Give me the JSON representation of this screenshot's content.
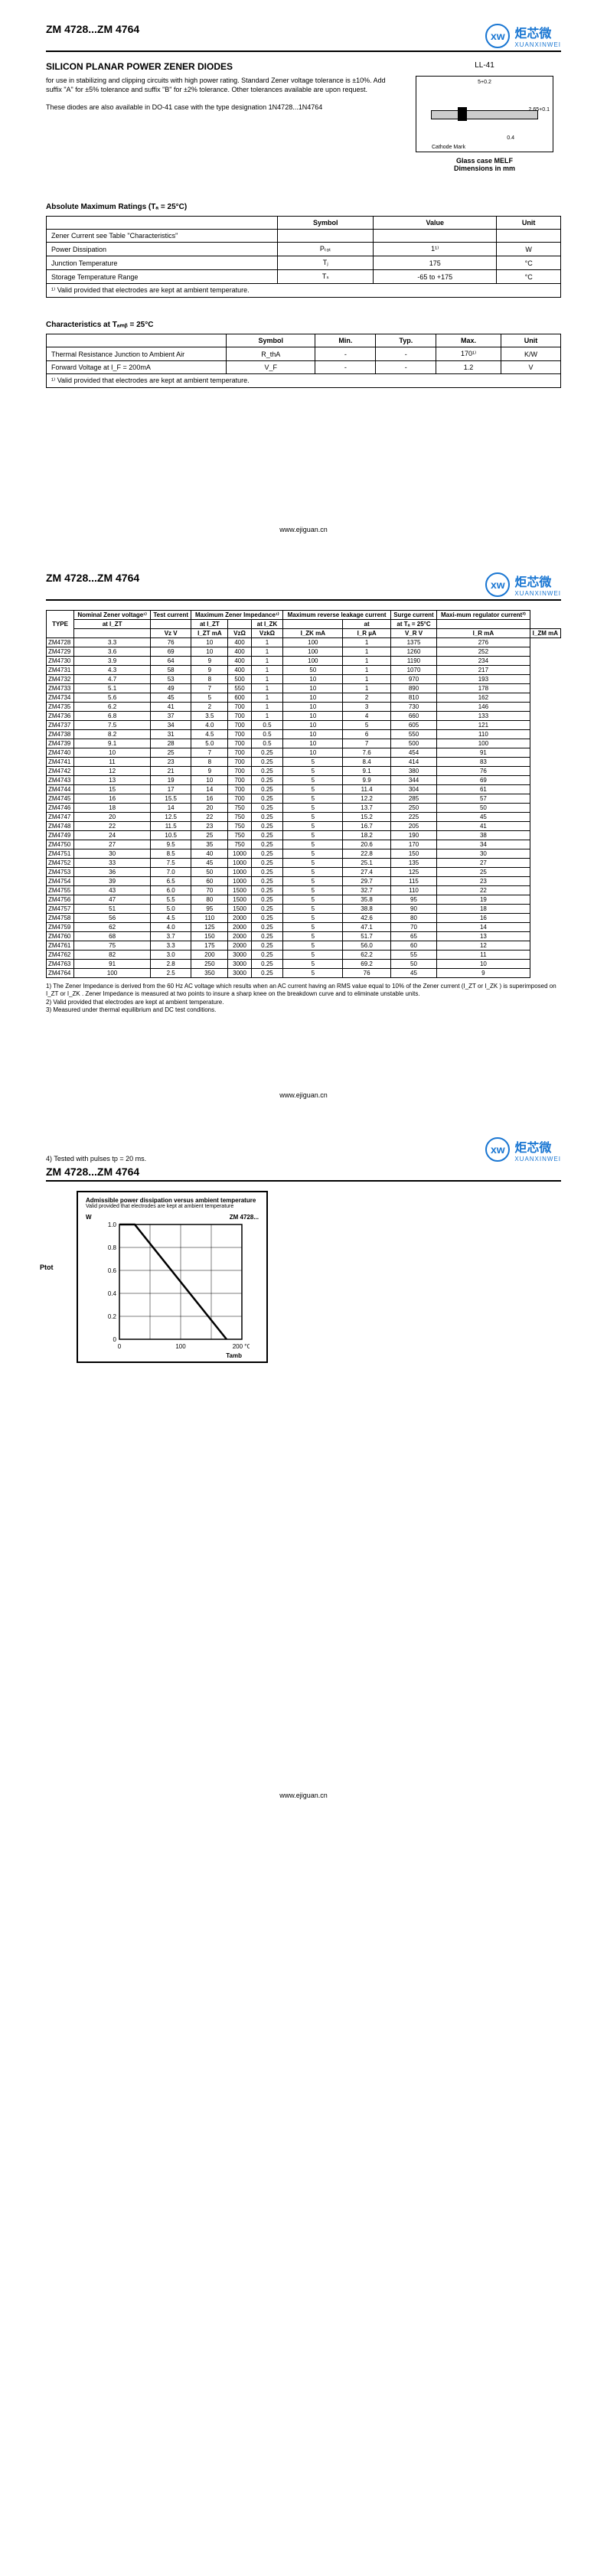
{
  "partNumber": "ZM 4728...ZM 4764",
  "logo": {
    "circle": "xw",
    "cn": "炬芯微",
    "en": "XUANXINWEI"
  },
  "title": "SILICON PLANAR POWER ZENER DIODES",
  "desc1": "for use in stabilizing and clipping circuits with high power rating. Standard Zener voltage tolerance is ±10%. Add suffix \"A\" for ±5% tolerance and suffix \"B\" for ±2% tolerance. Other tolerances available are upon request.",
  "desc2": "These diodes are also available in DO-41 case with the type designation 1N4728...1N4764",
  "pkgLabel": "LL-41",
  "pkgCaption1": "Glass case MELF",
  "pkgCaption2": "Dimensions in mm",
  "pkgDim1": "5+0.2",
  "pkgDim2": "2.65+0.1",
  "pkgDim3": "0.4",
  "pkgCathode": "Cathode Mark",
  "absMax": {
    "title": "Absolute Maximum Ratings (Tₐ = 25°C)",
    "headers": [
      "",
      "Symbol",
      "Value",
      "Unit"
    ],
    "rows": [
      [
        "Zener Current see Table \"Characteristics\"",
        "",
        "",
        ""
      ],
      [
        "Power Dissipation",
        "Pₜₒₜ",
        "1¹⁾",
        "W"
      ],
      [
        "Junction Temperature",
        "Tⱼ",
        "175",
        "°C"
      ],
      [
        "Storage Temperature Range",
        "Tₛ",
        "-65 to +175",
        "°C"
      ]
    ],
    "note": "¹⁾ Valid provided that electrodes are kept at ambient temperature."
  },
  "chars": {
    "title": "Characteristics at Tₐₘᵦ = 25°C",
    "headers": [
      "",
      "Symbol",
      "Min.",
      "Typ.",
      "Max.",
      "Unit"
    ],
    "rows": [
      [
        "Thermal Resistance Junction to Ambient Air",
        "R_thA",
        "-",
        "-",
        "170¹⁾",
        "K/W"
      ],
      [
        "Forward Voltage at I_F = 200mA",
        "V_F",
        "-",
        "-",
        "1.2",
        "V"
      ]
    ],
    "note": "¹⁾ Valid provided that electrodes are kept at ambient temperature."
  },
  "footer": "www.ejiguan.cn",
  "mainTable": {
    "headers1": [
      "TYPE",
      "Nominal Zener voltage¹⁾",
      "Test current",
      "Maximum Zener Impedance¹⁾",
      "",
      "",
      "Maximum reverse leakage current",
      "",
      "Surge current",
      "Maxi-mum regulator current²⁾"
    ],
    "headers2": [
      "",
      "at I_ZT",
      "",
      "at I_ZT",
      "",
      "at I_ZK",
      "",
      "at",
      "at Tₐ = 25°C",
      ""
    ],
    "headers3": [
      "",
      "Vz V",
      "I_ZT mA",
      "VzΩ",
      "VzkΩ",
      "I_ZK mA",
      "I_R µA",
      "V_R V",
      "I_R mA",
      "I_ZM mA"
    ],
    "rows": [
      [
        "ZM4728",
        "3.3",
        "76",
        "10",
        "400",
        "1",
        "100",
        "1",
        "1375",
        "276"
      ],
      [
        "ZM4729",
        "3.6",
        "69",
        "10",
        "400",
        "1",
        "100",
        "1",
        "1260",
        "252"
      ],
      [
        "ZM4730",
        "3.9",
        "64",
        "9",
        "400",
        "1",
        "100",
        "1",
        "1190",
        "234"
      ],
      [
        "ZM4731",
        "4.3",
        "58",
        "9",
        "400",
        "1",
        "50",
        "1",
        "1070",
        "217"
      ],
      [
        "ZM4732",
        "4.7",
        "53",
        "8",
        "500",
        "1",
        "10",
        "1",
        "970",
        "193"
      ],
      [
        "ZM4733",
        "5.1",
        "49",
        "7",
        "550",
        "1",
        "10",
        "1",
        "890",
        "178"
      ],
      [
        "ZM4734",
        "5.6",
        "45",
        "5",
        "600",
        "1",
        "10",
        "2",
        "810",
        "162"
      ],
      [
        "ZM4735",
        "6.2",
        "41",
        "2",
        "700",
        "1",
        "10",
        "3",
        "730",
        "146"
      ],
      [
        "ZM4736",
        "6.8",
        "37",
        "3.5",
        "700",
        "1",
        "10",
        "4",
        "660",
        "133"
      ],
      [
        "ZM4737",
        "7.5",
        "34",
        "4.0",
        "700",
        "0.5",
        "10",
        "5",
        "605",
        "121"
      ],
      [
        "ZM4738",
        "8.2",
        "31",
        "4.5",
        "700",
        "0.5",
        "10",
        "6",
        "550",
        "110"
      ],
      [
        "ZM4739",
        "9.1",
        "28",
        "5.0",
        "700",
        "0.5",
        "10",
        "7",
        "500",
        "100"
      ],
      [
        "ZM4740",
        "10",
        "25",
        "7",
        "700",
        "0.25",
        "10",
        "7.6",
        "454",
        "91"
      ],
      [
        "ZM4741",
        "11",
        "23",
        "8",
        "700",
        "0.25",
        "5",
        "8.4",
        "414",
        "83"
      ],
      [
        "ZM4742",
        "12",
        "21",
        "9",
        "700",
        "0.25",
        "5",
        "9.1",
        "380",
        "76"
      ],
      [
        "ZM4743",
        "13",
        "19",
        "10",
        "700",
        "0.25",
        "5",
        "9.9",
        "344",
        "69"
      ],
      [
        "ZM4744",
        "15",
        "17",
        "14",
        "700",
        "0.25",
        "5",
        "11.4",
        "304",
        "61"
      ],
      [
        "ZM4745",
        "16",
        "15.5",
        "16",
        "700",
        "0.25",
        "5",
        "12.2",
        "285",
        "57"
      ],
      [
        "ZM4746",
        "18",
        "14",
        "20",
        "750",
        "0.25",
        "5",
        "13.7",
        "250",
        "50"
      ],
      [
        "ZM4747",
        "20",
        "12.5",
        "22",
        "750",
        "0.25",
        "5",
        "15.2",
        "225",
        "45"
      ],
      [
        "ZM4748",
        "22",
        "11.5",
        "23",
        "750",
        "0.25",
        "5",
        "16.7",
        "205",
        "41"
      ],
      [
        "ZM4749",
        "24",
        "10.5",
        "25",
        "750",
        "0.25",
        "5",
        "18.2",
        "190",
        "38"
      ],
      [
        "ZM4750",
        "27",
        "9.5",
        "35",
        "750",
        "0.25",
        "5",
        "20.6",
        "170",
        "34"
      ],
      [
        "ZM4751",
        "30",
        "8.5",
        "40",
        "1000",
        "0.25",
        "5",
        "22.8",
        "150",
        "30"
      ],
      [
        "ZM4752",
        "33",
        "7.5",
        "45",
        "1000",
        "0.25",
        "5",
        "25.1",
        "135",
        "27"
      ],
      [
        "ZM4753",
        "36",
        "7.0",
        "50",
        "1000",
        "0.25",
        "5",
        "27.4",
        "125",
        "25"
      ],
      [
        "ZM4754",
        "39",
        "6.5",
        "60",
        "1000",
        "0.25",
        "5",
        "29.7",
        "115",
        "23"
      ],
      [
        "ZM4755",
        "43",
        "6.0",
        "70",
        "1500",
        "0.25",
        "5",
        "32.7",
        "110",
        "22"
      ],
      [
        "ZM4756",
        "47",
        "5.5",
        "80",
        "1500",
        "0.25",
        "5",
        "35.8",
        "95",
        "19"
      ],
      [
        "ZM4757",
        "51",
        "5.0",
        "95",
        "1500",
        "0.25",
        "5",
        "38.8",
        "90",
        "18"
      ],
      [
        "ZM4758",
        "56",
        "4.5",
        "110",
        "2000",
        "0.25",
        "5",
        "42.6",
        "80",
        "16"
      ],
      [
        "ZM4759",
        "62",
        "4.0",
        "125",
        "2000",
        "0.25",
        "5",
        "47.1",
        "70",
        "14"
      ],
      [
        "ZM4760",
        "68",
        "3.7",
        "150",
        "2000",
        "0.25",
        "5",
        "51.7",
        "65",
        "13"
      ],
      [
        "ZM4761",
        "75",
        "3.3",
        "175",
        "2000",
        "0.25",
        "5",
        "56.0",
        "60",
        "12"
      ],
      [
        "ZM4762",
        "82",
        "3.0",
        "200",
        "3000",
        "0.25",
        "5",
        "62.2",
        "55",
        "11"
      ],
      [
        "ZM4763",
        "91",
        "2.8",
        "250",
        "3000",
        "0.25",
        "5",
        "69.2",
        "50",
        "10"
      ],
      [
        "ZM4764",
        "100",
        "2.5",
        "350",
        "3000",
        "0.25",
        "5",
        "76",
        "45",
        "9"
      ]
    ]
  },
  "tableNotes": [
    "1) The Zener Impedance is derived from the 60 Hz AC voltage which results when an AC current having an RMS value equal to 10% of the Zener current (I_ZT or I_ZK ) is superimposed on I_ZT or I_ZK . Zener Impedance is measured at two points to insure a sharp knee on the breakdown curve and to eliminate unstable units.",
    "2) Valid provided that electrodes are kept at ambient temperature.",
    "3) Measured under thermal equilibrium and DC test conditions."
  ],
  "note4": "4) Tested with pulses tp = 20 ms.",
  "chart": {
    "title": "Admissible power dissipation versus ambient temperature",
    "sub": "Valid provided that electrodes are kept at ambient temperature",
    "yLabel": "W",
    "series": "ZM 4728...",
    "yTicks": [
      "1.0",
      "0.8",
      "0.6",
      "0.4",
      "0.2",
      "0"
    ],
    "xTicks": [
      "0",
      "100",
      "200 °C"
    ],
    "xLabel": "Tamb",
    "ptot": "Ptot",
    "lineColor": "#000",
    "bg": "#fff",
    "gridColor": "#000"
  }
}
